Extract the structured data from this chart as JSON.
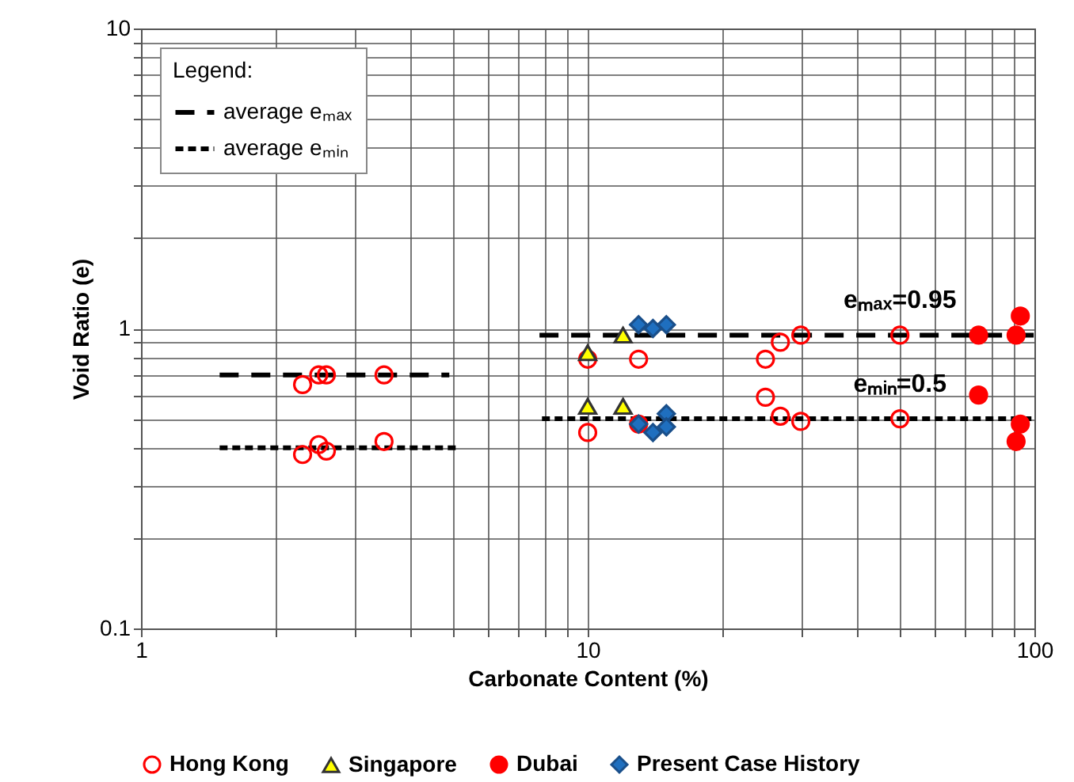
{
  "chart_data": {
    "type": "scatter",
    "xlabel": "Carbonate Content (%)",
    "ylabel": "Void Ratio (e)",
    "log": "xy",
    "xlim": [
      1,
      100
    ],
    "ylim": [
      0.1,
      10
    ],
    "xticks": [
      1,
      {
        "value": 2,
        "label": null
      },
      {
        "value": 3,
        "label": null
      },
      {
        "value": 4,
        "label": null
      },
      {
        "value": 5,
        "label": null
      },
      {
        "value": 6,
        "label": null
      },
      {
        "value": 7,
        "label": null
      },
      {
        "value": 8,
        "label": null
      },
      {
        "value": 9,
        "label": null
      },
      10,
      {
        "value": 20,
        "label": null
      },
      {
        "value": 30,
        "label": null
      },
      {
        "value": 40,
        "label": null
      },
      {
        "value": 50,
        "label": null
      },
      {
        "value": 60,
        "label": null
      },
      {
        "value": 70,
        "label": null
      },
      {
        "value": 80,
        "label": null
      },
      {
        "value": 90,
        "label": null
      },
      100
    ],
    "yticks": [
      0.1,
      {
        "value": 0.2,
        "label": null
      },
      {
        "value": 0.3,
        "label": null
      },
      {
        "value": 0.4,
        "label": null
      },
      {
        "value": 0.5,
        "label": null
      },
      {
        "value": 0.6,
        "label": null
      },
      {
        "value": 0.7,
        "label": null
      },
      {
        "value": 0.8,
        "label": null
      },
      {
        "value": 0.9,
        "label": null
      },
      1,
      {
        "value": 2,
        "label": null
      },
      {
        "value": 3,
        "label": null
      },
      {
        "value": 4,
        "label": null
      },
      {
        "value": 5,
        "label": null
      },
      {
        "value": 6,
        "label": null
      },
      {
        "value": 7,
        "label": null
      },
      {
        "value": 8,
        "label": null
      },
      {
        "value": 9,
        "label": null
      },
      10
    ],
    "grid": true,
    "legend": "bottom",
    "legend_title": "Legend:",
    "series": [
      {
        "name": "Hong Kong",
        "color": "#ff0000",
        "marker": "circle",
        "x": [
          2.3,
          2.5,
          2.6,
          3.5,
          2.3,
          2.5,
          2.6,
          3.5,
          10,
          10,
          13,
          13,
          25,
          27,
          30,
          50,
          25,
          27,
          30,
          50
        ],
        "values": [
          0.65,
          0.7,
          0.7,
          0.7,
          0.38,
          0.41,
          0.39,
          0.42,
          0.45,
          0.79,
          0.79,
          0.48,
          0.79,
          0.9,
          0.95,
          0.95,
          0.59,
          0.51,
          0.49,
          0.5
        ]
      },
      {
        "name": "Singapore",
        "color": "#ffff00",
        "marker": "triangle",
        "x": [
          10,
          12,
          10,
          12
        ],
        "values": [
          0.83,
          0.95,
          0.55,
          0.55
        ]
      },
      {
        "name": "Dubai",
        "color": "#ff0000",
        "marker": "circle",
        "x": [
          75,
          91,
          93,
          75,
          93,
          91
        ],
        "values": [
          0.95,
          0.95,
          1.1,
          0.6,
          0.48,
          0.42
        ]
      },
      {
        "name": "Present Case History",
        "color": "#1f6fbf",
        "marker": "diamond",
        "x": [
          13,
          14,
          15,
          13,
          14,
          15,
          15
        ],
        "values": [
          1.03,
          1.0,
          1.03,
          0.48,
          0.45,
          0.52,
          0.47
        ]
      },
      {
        "name": "average eₘₐₓ",
        "type": "line",
        "color": "#000000",
        "line_style": "dashed",
        "x": [
          1.5,
          4.9,
          null,
          7.8,
          100
        ],
        "values": [
          0.7,
          0.7,
          null,
          0.95,
          0.95
        ]
      },
      {
        "name": "average eₘᵢₙ",
        "type": "line",
        "color": "#000000",
        "line_style": "dotted",
        "x": [
          1.5,
          5.1,
          null,
          7.9,
          100
        ],
        "values": [
          0.4,
          0.4,
          null,
          0.5,
          0.5
        ]
      }
    ],
    "annotations": [
      {
        "text": "eₘₐₓ=0.95",
        "x": 50,
        "y": 0.95
      },
      {
        "text": "eₘᵢₙ=0.5",
        "x": 50,
        "y": 0.5
      }
    ]
  }
}
